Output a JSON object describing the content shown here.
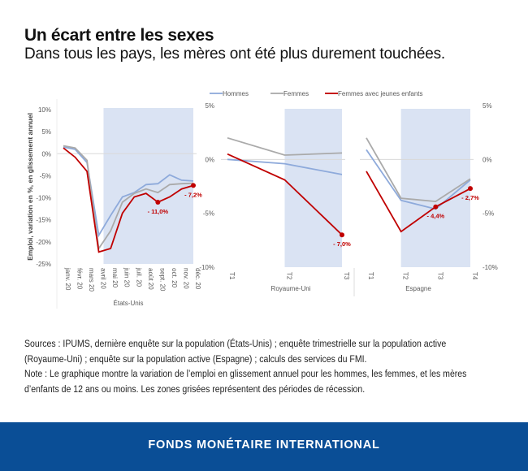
{
  "title": "Un écart entre les sexes",
  "subtitle": "Dans tous les pays, les mères ont été plus durement touchées.",
  "notes": {
    "sources": "Sources : IPUMS, dernière enquête sur la population (États-Unis) ; enquête trimestrielle sur la population active (Royaume-Uni) ; enquête sur la population active (Espagne) ; calculs des services du FMI.",
    "note": "Note : Le graphique montre la variation de l’emploi en glissement annuel pour les hommes, les femmes, et les mères d’enfants de 12 ans ou moins. Les zones grisées représentent des périodes de récession."
  },
  "footer": "FONDS MONÉTAIRE INTERNATIONAL",
  "colors": {
    "hommes": "#8eaadb",
    "femmes": "#aaaaaa",
    "fje": "#c00000",
    "recession": "#dae3f3",
    "footer": "#0a4e96"
  },
  "legend": [
    "Hommes",
    "Femmes",
    "Femmes avec jeunes enfants"
  ],
  "chart_data": [
    {
      "type": "line",
      "panel": "États-Unis",
      "ylabel": "Emploi, variation en %, en glissement annuel",
      "ylim": [
        -25,
        10
      ],
      "yticks": [
        "10%",
        "5%",
        "0%",
        "-5%",
        "-10%",
        "-15%",
        "-20%",
        "-25%"
      ],
      "categories": [
        "janv. 20",
        "févr. 20",
        "mars 20",
        "avril 20",
        "mai 20",
        "juin 20",
        "juil. 20",
        "août 20",
        "sept. 20",
        "oct. 20",
        "nov. 20",
        "déc. 20"
      ],
      "recession": [
        "avril 20",
        "déc. 20"
      ],
      "series": [
        {
          "name": "Hommes",
          "values": [
            1.5,
            1.0,
            -2.0,
            -18.5,
            -14.0,
            -9.8,
            -8.8,
            -7.0,
            -6.8,
            -4.8,
            -6.0,
            -6.2
          ]
        },
        {
          "name": "Femmes",
          "values": [
            1.8,
            1.3,
            -1.5,
            -21.5,
            -17.5,
            -11.0,
            -9.0,
            -8.0,
            -8.8,
            -7.0,
            -6.8,
            -6.7
          ]
        },
        {
          "name": "Femmes avec jeunes enfants",
          "values": [
            1.3,
            -0.8,
            -4.0,
            -22.3,
            -21.5,
            -13.5,
            -9.8,
            -9.0,
            -11.0,
            -9.8,
            -8.0,
            -7.2
          ]
        }
      ],
      "annotations": [
        {
          "category": "sept. 20",
          "value": -11.0,
          "label": "- 11,0%"
        },
        {
          "category": "déc. 20",
          "value": -7.2,
          "label": "- 7,2%"
        }
      ]
    },
    {
      "type": "line",
      "panel": "Royaume-Uni",
      "ylim": [
        -10,
        5
      ],
      "yticks": [
        "5%",
        "0%",
        "-5%",
        "-10%"
      ],
      "categories": [
        "T1",
        "T2",
        "T3"
      ],
      "recession": [
        "T2",
        "T3"
      ],
      "series": [
        {
          "name": "Hommes",
          "values": [
            0.0,
            -0.4,
            -1.4
          ]
        },
        {
          "name": "Femmes",
          "values": [
            2.0,
            0.4,
            0.6
          ]
        },
        {
          "name": "Femmes avec jeunes enfants",
          "values": [
            0.5,
            -1.9,
            -7.0
          ]
        }
      ],
      "annotations": [
        {
          "category": "T3",
          "value": -7.0,
          "label": "- 7,0%"
        }
      ]
    },
    {
      "type": "line",
      "panel": "Espagne",
      "ylim": [
        -10,
        5
      ],
      "yticks": [
        "5%",
        "0%",
        "-5%",
        "-10%"
      ],
      "categories": [
        "T1",
        "T2",
        "T3",
        "T4"
      ],
      "recession": [
        "T2",
        "T4"
      ],
      "series": [
        {
          "name": "Hommes",
          "values": [
            0.9,
            -3.8,
            -4.6,
            -1.9
          ]
        },
        {
          "name": "Femmes",
          "values": [
            2.0,
            -3.6,
            -3.9,
            -1.8
          ]
        },
        {
          "name": "Femmes avec jeunes enfants",
          "values": [
            -1.1,
            -6.7,
            -4.4,
            -2.7
          ]
        }
      ],
      "annotations": [
        {
          "category": "T3",
          "value": -4.4,
          "label": "- 4,4%"
        },
        {
          "category": "T4",
          "value": -2.7,
          "label": "- 2,7%"
        }
      ]
    }
  ]
}
